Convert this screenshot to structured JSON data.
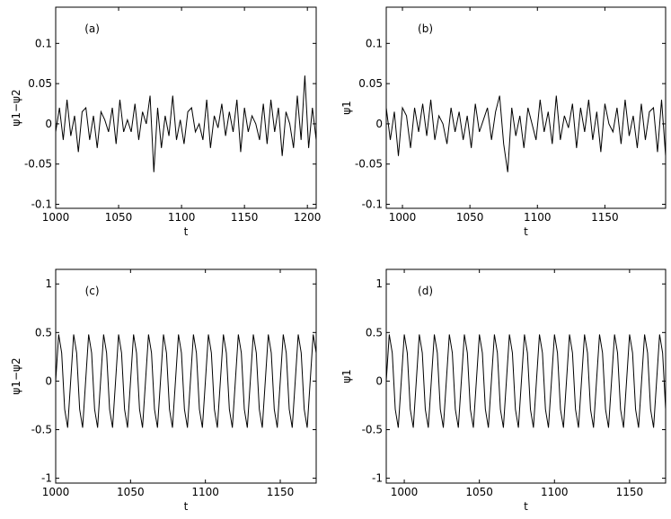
{
  "chart_data": [
    {
      "type": "line",
      "label": "(a)",
      "xlabel": "t",
      "ylabel": "ψ1−ψ2",
      "color": "#000000",
      "x": [
        1000,
        1003,
        1006,
        1009,
        1012,
        1015,
        1018,
        1021,
        1024,
        1027,
        1030,
        1033,
        1036,
        1039,
        1042,
        1045,
        1048,
        1051,
        1054,
        1057,
        1060,
        1063,
        1066,
        1069,
        1072,
        1075,
        1078,
        1081,
        1084,
        1087,
        1090,
        1093,
        1096,
        1099,
        1102,
        1105,
        1108,
        1111,
        1114,
        1117,
        1120,
        1123,
        1126,
        1129,
        1132,
        1135,
        1138,
        1141,
        1144,
        1147,
        1150,
        1153,
        1156,
        1159,
        1162,
        1165,
        1168,
        1171,
        1174,
        1177,
        1180,
        1183,
        1186,
        1189,
        1192,
        1195,
        1198,
        1201,
        1204,
        1207
      ],
      "values": [
        -0.01,
        0.02,
        -0.02,
        0.03,
        -0.015,
        0.01,
        -0.035,
        0.015,
        0.02,
        -0.02,
        0.01,
        -0.03,
        0.015,
        0.005,
        -0.01,
        0.02,
        -0.025,
        0.03,
        -0.01,
        0.005,
        -0.01,
        0.025,
        -0.02,
        0.015,
        0.0,
        0.035,
        -0.06,
        0.02,
        -0.03,
        0.01,
        -0.015,
        0.035,
        -0.02,
        0.005,
        -0.025,
        0.015,
        0.02,
        -0.01,
        0.0,
        -0.02,
        0.03,
        -0.03,
        0.01,
        -0.005,
        0.025,
        -0.015,
        0.015,
        -0.01,
        0.03,
        -0.035,
        0.02,
        -0.01,
        0.01,
        0.0,
        -0.02,
        0.025,
        -0.025,
        0.03,
        -0.01,
        0.02,
        -0.04,
        0.015,
        0.0,
        -0.03,
        0.035,
        -0.02,
        0.06,
        -0.03,
        0.02,
        -0.02
      ],
      "xlim": [
        1000,
        1207
      ],
      "ylim": [
        -0.105,
        0.145
      ],
      "xticks": [
        1000,
        1050,
        1100,
        1150,
        1200
      ],
      "yticks": [
        -0.1,
        -0.05,
        0,
        0.05,
        0.1
      ]
    },
    {
      "type": "line",
      "label": "(b)",
      "xlabel": "t",
      "ylabel": "ψ1",
      "color": "#000000",
      "x": [
        988,
        991,
        994,
        997,
        1000,
        1003,
        1006,
        1009,
        1012,
        1015,
        1018,
        1021,
        1024,
        1027,
        1030,
        1033,
        1036,
        1039,
        1042,
        1045,
        1048,
        1051,
        1054,
        1057,
        1060,
        1063,
        1066,
        1069,
        1072,
        1075,
        1078,
        1081,
        1084,
        1087,
        1090,
        1093,
        1096,
        1099,
        1102,
        1105,
        1108,
        1111,
        1114,
        1117,
        1120,
        1123,
        1126,
        1129,
        1132,
        1135,
        1138,
        1141,
        1144,
        1147,
        1150,
        1153,
        1156,
        1159,
        1162,
        1165,
        1168,
        1171,
        1174,
        1177,
        1180,
        1183,
        1186,
        1189,
        1192,
        1195
      ],
      "values": [
        0.02,
        -0.02,
        0.015,
        -0.04,
        0.02,
        0.01,
        -0.03,
        0.02,
        -0.01,
        0.025,
        -0.015,
        0.03,
        -0.02,
        0.01,
        0.0,
        -0.025,
        0.02,
        -0.01,
        0.015,
        -0.02,
        0.01,
        -0.03,
        0.025,
        -0.01,
        0.005,
        0.02,
        -0.02,
        0.015,
        0.035,
        -0.025,
        -0.06,
        0.02,
        -0.015,
        0.01,
        -0.03,
        0.02,
        0.0,
        -0.02,
        0.03,
        -0.01,
        0.015,
        -0.025,
        0.035,
        -0.02,
        0.01,
        -0.005,
        0.025,
        -0.03,
        0.02,
        -0.01,
        0.03,
        -0.02,
        0.015,
        -0.035,
        0.025,
        0.0,
        -0.01,
        0.02,
        -0.025,
        0.03,
        -0.015,
        0.01,
        -0.03,
        0.025,
        -0.02,
        0.015,
        0.02,
        -0.035,
        0.03,
        -0.04
      ],
      "xlim": [
        988,
        1195
      ],
      "ylim": [
        -0.105,
        0.145
      ],
      "xticks": [
        1000,
        1050,
        1100,
        1150
      ],
      "yticks": [
        -0.1,
        -0.05,
        0,
        0.05,
        0.1
      ]
    },
    {
      "type": "line",
      "label": "(c)",
      "xlabel": "t",
      "ylabel": "ψ1−ψ2",
      "color": "#000000",
      "x": [
        1000,
        1002,
        1004,
        1006,
        1008,
        1010,
        1012,
        1014,
        1016,
        1018,
        1020,
        1022,
        1024,
        1026,
        1028,
        1030,
        1032,
        1034,
        1036,
        1038,
        1040,
        1042,
        1044,
        1046,
        1048,
        1050,
        1052,
        1054,
        1056,
        1058,
        1060,
        1062,
        1064,
        1066,
        1068,
        1070,
        1072,
        1074,
        1076,
        1078,
        1080,
        1082,
        1084,
        1086,
        1088,
        1090,
        1092,
        1094,
        1096,
        1098,
        1100,
        1102,
        1104,
        1106,
        1108,
        1110,
        1112,
        1114,
        1116,
        1118,
        1120,
        1122,
        1124,
        1126,
        1128,
        1130,
        1132,
        1134,
        1136,
        1138,
        1140,
        1142,
        1144,
        1146,
        1148,
        1150,
        1152,
        1154,
        1156,
        1158,
        1160,
        1162,
        1164,
        1166,
        1168,
        1170,
        1172,
        1174
      ],
      "values": [
        0,
        0.48,
        0.29,
        -0.29,
        -0.48,
        0,
        0.48,
        0.29,
        -0.29,
        -0.48,
        0,
        0.48,
        0.29,
        -0.29,
        -0.48,
        0,
        0.48,
        0.29,
        -0.29,
        -0.48,
        0,
        0.48,
        0.29,
        -0.29,
        -0.48,
        0,
        0.48,
        0.29,
        -0.29,
        -0.48,
        0,
        0.48,
        0.29,
        -0.29,
        -0.48,
        0,
        0.48,
        0.29,
        -0.29,
        -0.48,
        0,
        0.48,
        0.29,
        -0.29,
        -0.48,
        0,
        0.48,
        0.29,
        -0.29,
        -0.48,
        0,
        0.48,
        0.29,
        -0.29,
        -0.48,
        0,
        0.48,
        0.29,
        -0.29,
        -0.48,
        0,
        0.48,
        0.29,
        -0.29,
        -0.48,
        0,
        0.48,
        0.29,
        -0.29,
        -0.48,
        0,
        0.48,
        0.29,
        -0.29,
        -0.48,
        0,
        0.48,
        0.29,
        -0.29,
        -0.48,
        0,
        0.48,
        0.29,
        -0.29,
        -0.48,
        0,
        0.48,
        0.29
      ],
      "xlim": [
        1000,
        1174
      ],
      "ylim": [
        -1.05,
        1.15
      ],
      "xticks": [
        1000,
        1050,
        1100,
        1150
      ],
      "yticks": [
        -1,
        -0.5,
        0,
        0.5,
        1
      ]
    },
    {
      "type": "line",
      "label": "(d)",
      "xlabel": "t",
      "ylabel": "ψ1",
      "color": "#000000",
      "x": [
        988,
        990,
        992,
        994,
        996,
        998,
        1000,
        1002,
        1004,
        1006,
        1008,
        1010,
        1012,
        1014,
        1016,
        1018,
        1020,
        1022,
        1024,
        1026,
        1028,
        1030,
        1032,
        1034,
        1036,
        1038,
        1040,
        1042,
        1044,
        1046,
        1048,
        1050,
        1052,
        1054,
        1056,
        1058,
        1060,
        1062,
        1064,
        1066,
        1068,
        1070,
        1072,
        1074,
        1076,
        1078,
        1080,
        1082,
        1084,
        1086,
        1088,
        1090,
        1092,
        1094,
        1096,
        1098,
        1100,
        1102,
        1104,
        1106,
        1108,
        1110,
        1112,
        1114,
        1116,
        1118,
        1120,
        1122,
        1124,
        1126,
        1128,
        1130,
        1132,
        1134,
        1136,
        1138,
        1140,
        1142,
        1144,
        1146,
        1148,
        1150,
        1152,
        1154,
        1156,
        1158,
        1160,
        1162,
        1164,
        1166,
        1168,
        1170,
        1172,
        1174
      ],
      "values": [
        0,
        0.48,
        0.29,
        -0.29,
        -0.48,
        0,
        0.48,
        0.29,
        -0.29,
        -0.48,
        0,
        0.48,
        0.29,
        -0.29,
        -0.48,
        0,
        0.48,
        0.29,
        -0.29,
        -0.48,
        0,
        0.48,
        0.29,
        -0.29,
        -0.48,
        0,
        0.48,
        0.29,
        -0.29,
        -0.48,
        0,
        0.48,
        0.29,
        -0.29,
        -0.48,
        0,
        0.48,
        0.29,
        -0.29,
        -0.48,
        0,
        0.48,
        0.29,
        -0.29,
        -0.48,
        0,
        0.48,
        0.29,
        -0.29,
        -0.48,
        0,
        0.48,
        0.29,
        -0.29,
        -0.48,
        0,
        0.48,
        0.29,
        -0.29,
        -0.48,
        0,
        0.48,
        0.29,
        -0.29,
        -0.48,
        0,
        0.48,
        0.29,
        -0.29,
        -0.48,
        0,
        0.48,
        0.29,
        -0.29,
        -0.48,
        0,
        0.48,
        0.29,
        -0.29,
        -0.48,
        0,
        0.48,
        0.29,
        -0.29,
        -0.48,
        0,
        0.48,
        0.29,
        -0.29,
        -0.48,
        0,
        0.48,
        0.29,
        -0.29
      ],
      "xlim": [
        988,
        1174
      ],
      "ylim": [
        -1.05,
        1.15
      ],
      "xticks": [
        1000,
        1050,
        1100,
        1150
      ],
      "yticks": [
        -1,
        -0.5,
        0,
        0.5,
        1
      ]
    }
  ]
}
